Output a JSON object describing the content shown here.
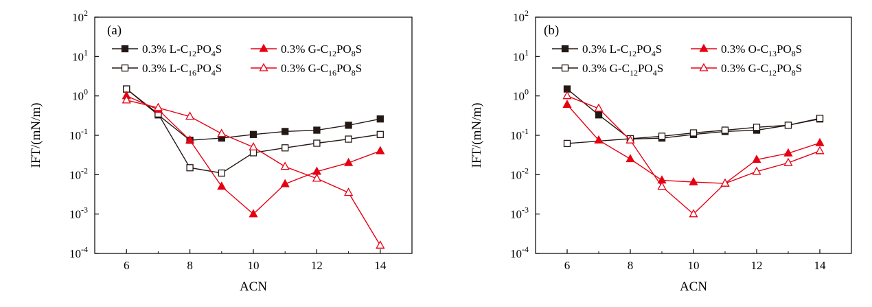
{
  "chart_data": [
    {
      "type": "line",
      "panel_label": "(a)",
      "xlabel": "ACN",
      "ylabel": "IFT/(mN/m)",
      "xlim": [
        5,
        15
      ],
      "ylim": [
        0.0001,
        100
      ],
      "yscale": "log",
      "xticks": [
        "6",
        "8",
        "10",
        "12",
        "14"
      ],
      "yticks": [
        {
          "base": "10",
          "exp": "-4"
        },
        {
          "base": "10",
          "exp": "-3"
        },
        {
          "base": "10",
          "exp": "-2"
        },
        {
          "base": "10",
          "exp": "-1"
        },
        {
          "base": "10",
          "exp": "0"
        },
        {
          "base": "10",
          "exp": "1"
        },
        {
          "base": "10",
          "exp": "2"
        }
      ],
      "legend_placement": "top",
      "series": [
        {
          "name_parts": [
            [
              "0.3% L-C",
              "n"
            ],
            [
              "12",
              "s"
            ],
            [
              "PO",
              "n"
            ],
            [
              "4",
              "s"
            ],
            [
              "S",
              "n"
            ]
          ],
          "color": "#231815",
          "marker": "square",
          "filled": true,
          "x": [
            6,
            7,
            8,
            9,
            10,
            11,
            12,
            13,
            14
          ],
          "values": [
            1.5,
            0.33,
            0.075,
            0.085,
            0.105,
            0.125,
            0.135,
            0.18,
            0.26
          ]
        },
        {
          "name_parts": [
            [
              "0.3% L-C",
              "n"
            ],
            [
              "16",
              "s"
            ],
            [
              "PO",
              "n"
            ],
            [
              "4",
              "s"
            ],
            [
              "S",
              "n"
            ]
          ],
          "color": "#231815",
          "marker": "square",
          "filled": false,
          "x": [
            6,
            7,
            8,
            9,
            10,
            11,
            12,
            13,
            14
          ],
          "values": [
            1.5,
            0.35,
            0.015,
            0.011,
            0.036,
            0.048,
            0.063,
            0.08,
            0.105
          ]
        },
        {
          "name_parts": [
            [
              "0.3% G-C",
              "n"
            ],
            [
              "12",
              "s"
            ],
            [
              "PO",
              "n"
            ],
            [
              "8",
              "s"
            ],
            [
              "S",
              "n"
            ]
          ],
          "color": "#e60012",
          "marker": "triangle",
          "filled": true,
          "x": [
            6,
            7,
            8,
            9,
            10,
            11,
            12,
            13,
            14
          ],
          "values": [
            1.0,
            0.45,
            0.075,
            0.005,
            0.001,
            0.0058,
            0.012,
            0.02,
            0.04
          ]
        },
        {
          "name_parts": [
            [
              "0.3% G-C",
              "n"
            ],
            [
              "16",
              "s"
            ],
            [
              "PO",
              "n"
            ],
            [
              "8",
              "s"
            ],
            [
              "S",
              "n"
            ]
          ],
          "color": "#e60012",
          "marker": "triangle",
          "filled": false,
          "x": [
            6,
            7,
            8,
            9,
            10,
            11,
            12,
            13,
            14
          ],
          "values": [
            0.78,
            0.5,
            0.3,
            0.11,
            0.05,
            0.016,
            0.008,
            0.0035,
            0.00016
          ]
        }
      ]
    },
    {
      "type": "line",
      "panel_label": "(b)",
      "xlabel": "ACN",
      "ylabel": "IFT/(mN/m)",
      "xlim": [
        5,
        15
      ],
      "ylim": [
        0.0001,
        100
      ],
      "yscale": "log",
      "xticks": [
        "6",
        "8",
        "10",
        "12",
        "14"
      ],
      "yticks": [
        {
          "base": "10",
          "exp": "-4"
        },
        {
          "base": "10",
          "exp": "-3"
        },
        {
          "base": "10",
          "exp": "-2"
        },
        {
          "base": "10",
          "exp": "-1"
        },
        {
          "base": "10",
          "exp": "0"
        },
        {
          "base": "10",
          "exp": "1"
        },
        {
          "base": "10",
          "exp": "2"
        }
      ],
      "legend_placement": "top",
      "series": [
        {
          "name_parts": [
            [
              "0.3% L-C",
              "n"
            ],
            [
              "12",
              "s"
            ],
            [
              "PO",
              "n"
            ],
            [
              "4",
              "s"
            ],
            [
              "S",
              "n"
            ]
          ],
          "color": "#231815",
          "marker": "square",
          "filled": true,
          "x": [
            6,
            7,
            8,
            9,
            10,
            11,
            12,
            13,
            14
          ],
          "values": [
            1.5,
            0.33,
            0.08,
            0.085,
            0.105,
            0.125,
            0.135,
            0.18,
            0.26
          ]
        },
        {
          "name_parts": [
            [
              "0.3% G-C",
              "n"
            ],
            [
              "12",
              "s"
            ],
            [
              "PO",
              "n"
            ],
            [
              "4",
              "s"
            ],
            [
              "S",
              "n"
            ]
          ],
          "color": "#231815",
          "marker": "square",
          "filled": false,
          "x": [
            6,
            8,
            9,
            10,
            11,
            12,
            13,
            14
          ],
          "values": [
            0.062,
            0.082,
            0.095,
            0.115,
            0.135,
            0.16,
            0.18,
            0.27
          ]
        },
        {
          "name_parts": [
            [
              "0.3% O-C",
              "n"
            ],
            [
              "13",
              "s"
            ],
            [
              "PO",
              "n"
            ],
            [
              "8",
              "s"
            ],
            [
              "S",
              "n"
            ]
          ],
          "color": "#e60012",
          "marker": "triangle",
          "filled": true,
          "x": [
            6,
            7,
            8,
            9,
            10,
            11,
            12,
            13,
            14
          ],
          "values": [
            0.6,
            0.075,
            0.025,
            0.0072,
            0.0065,
            0.006,
            0.024,
            0.035,
            0.064
          ]
        },
        {
          "name_parts": [
            [
              "0.3% G-C",
              "n"
            ],
            [
              "12",
              "s"
            ],
            [
              "PO",
              "n"
            ],
            [
              "8",
              "s"
            ],
            [
              "S",
              "n"
            ]
          ],
          "color": "#e60012",
          "marker": "triangle",
          "filled": false,
          "x": [
            6,
            7,
            8,
            9,
            10,
            11,
            12,
            13,
            14
          ],
          "values": [
            1.0,
            0.48,
            0.075,
            0.005,
            0.001,
            0.006,
            0.012,
            0.02,
            0.04
          ]
        }
      ]
    }
  ]
}
